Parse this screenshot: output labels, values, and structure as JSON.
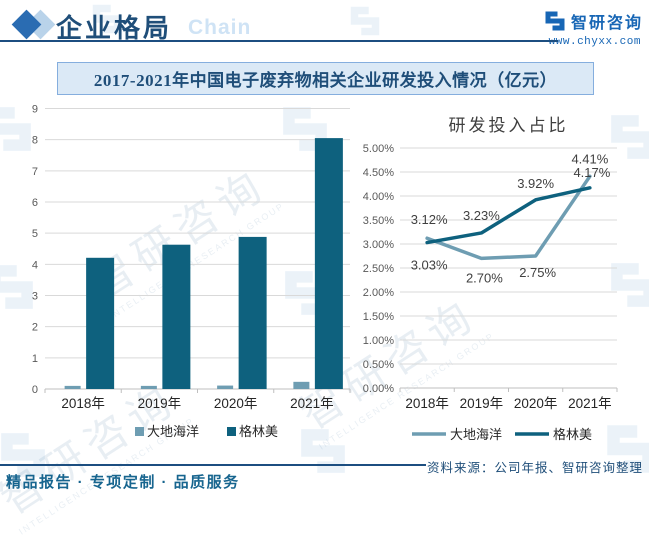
{
  "header": {
    "section_title": "企业格局",
    "decor_text": "Chain",
    "brand_name": "智研咨询",
    "brand_site": "www.chyxx.com"
  },
  "banner": {
    "title": "2017-2021年中国电子废弃物相关企业研发投入情况（亿元）"
  },
  "chart_data": [
    {
      "type": "bar",
      "title": "",
      "categories": [
        "2018年",
        "2019年",
        "2020年",
        "2021年"
      ],
      "series": [
        {
          "name": "大地海洋",
          "color": "#6E9DB2",
          "values": [
            0.1,
            0.1,
            0.11,
            0.23
          ]
        },
        {
          "name": "格林美",
          "color": "#0E617E",
          "values": [
            4.21,
            4.63,
            4.88,
            8.05
          ]
        }
      ],
      "ylabel": "",
      "ylim": [
        0,
        9
      ],
      "yticks": [
        "0",
        "1",
        "2",
        "3",
        "4",
        "5",
        "6",
        "7",
        "8",
        "9"
      ],
      "grid": true,
      "legend_position": "bottom"
    },
    {
      "type": "line",
      "title": "研发投入占比",
      "categories": [
        "2018年",
        "2019年",
        "2020年",
        "2021年"
      ],
      "series": [
        {
          "name": "大地海洋",
          "color": "#6E9DB2",
          "values": [
            3.12,
            2.7,
            2.75,
            4.41
          ],
          "point_labels": [
            "3.12%",
            "2.70%",
            "2.75%",
            "4.41%"
          ]
        },
        {
          "name": "格林美",
          "color": "#0E617E",
          "values": [
            3.03,
            3.23,
            3.92,
            4.17
          ],
          "point_labels": [
            "3.03%",
            "3.23%",
            "3.92%",
            "4.17%"
          ]
        }
      ],
      "ylabel": "",
      "ylim": [
        0,
        5
      ],
      "yticks": [
        "0.00%",
        "0.50%",
        "1.00%",
        "1.50%",
        "2.00%",
        "2.50%",
        "3.00%",
        "3.50%",
        "4.00%",
        "4.50%",
        "5.00%"
      ],
      "grid": true,
      "legend_position": "bottom"
    }
  ],
  "footer": {
    "source": "资料来源：公司年报、智研咨询整理",
    "tagline": "精品报告 · 专项定制 · 品质服务"
  },
  "watermark": {
    "cn": "智研咨询",
    "en": "INTELLIGENCE RESEARCH GROUP"
  }
}
